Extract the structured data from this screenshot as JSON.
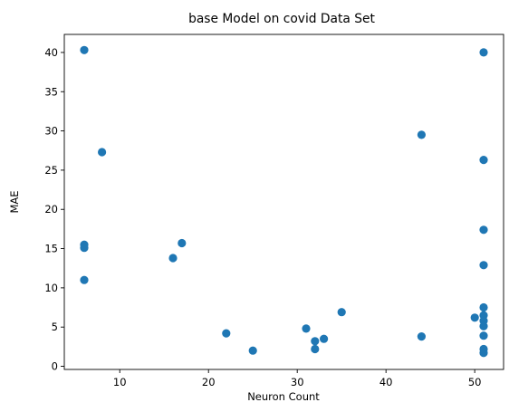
{
  "chart_data": {
    "type": "scatter",
    "title": "base Model on covid Data Set",
    "xlabel": "Neuron Count",
    "ylabel": "MAE",
    "xlim": [
      3.75,
      53.25
    ],
    "ylim": [
      -0.4,
      42.3
    ],
    "xticks": [
      10,
      20,
      30,
      40,
      50
    ],
    "yticks": [
      0,
      5,
      10,
      15,
      20,
      25,
      30,
      35,
      40
    ],
    "grid": false,
    "marker_color": "#1f77b4",
    "points": [
      {
        "x": 6,
        "y": 40.3
      },
      {
        "x": 6,
        "y": 15.5
      },
      {
        "x": 6,
        "y": 15.1
      },
      {
        "x": 6,
        "y": 11.0
      },
      {
        "x": 8,
        "y": 27.3
      },
      {
        "x": 16,
        "y": 13.8
      },
      {
        "x": 17,
        "y": 15.7
      },
      {
        "x": 22,
        "y": 4.2
      },
      {
        "x": 25,
        "y": 2.0
      },
      {
        "x": 31,
        "y": 4.8
      },
      {
        "x": 32,
        "y": 3.2
      },
      {
        "x": 32,
        "y": 2.2
      },
      {
        "x": 33,
        "y": 3.5
      },
      {
        "x": 35,
        "y": 6.9
      },
      {
        "x": 44,
        "y": 29.5
      },
      {
        "x": 44,
        "y": 3.8
      },
      {
        "x": 50,
        "y": 6.2
      },
      {
        "x": 51,
        "y": 40.0
      },
      {
        "x": 51,
        "y": 26.3
      },
      {
        "x": 51,
        "y": 17.4
      },
      {
        "x": 51,
        "y": 12.9
      },
      {
        "x": 51,
        "y": 7.5
      },
      {
        "x": 51,
        "y": 6.5
      },
      {
        "x": 51,
        "y": 5.8
      },
      {
        "x": 51,
        "y": 5.1
      },
      {
        "x": 51,
        "y": 3.9
      },
      {
        "x": 51,
        "y": 2.2
      },
      {
        "x": 51,
        "y": 1.7
      }
    ]
  }
}
